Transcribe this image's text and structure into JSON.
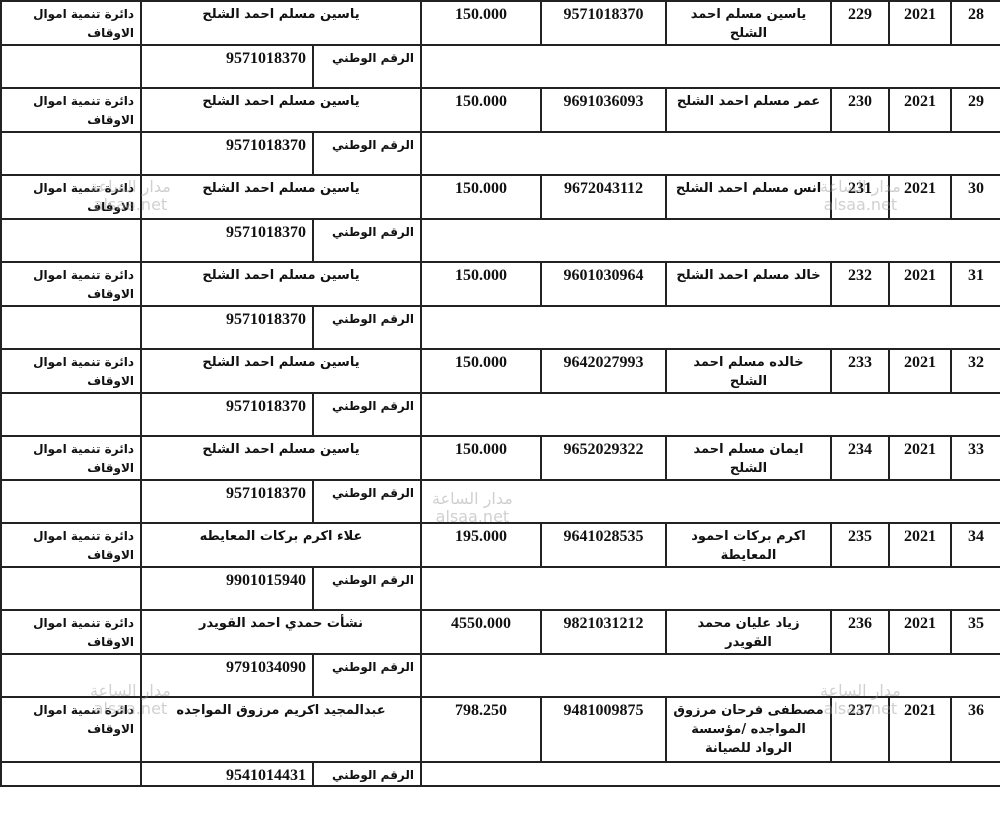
{
  "national_id_label": "الرقم الوطني",
  "watermark": {
    "ar": "مدار الساعة",
    "en": "alsaa.net"
  },
  "records": [
    {
      "seq": "28",
      "year": "2021",
      "number": "229",
      "name": "ياسين مسلم احمد الشلح",
      "national_id": "9571018370",
      "amount": "150.000",
      "beneficiary": "ياسين مسلم احمد الشلح",
      "beneficiary_id": "9571018370",
      "department": "دائرة تنمية اموال الاوقاف"
    },
    {
      "seq": "29",
      "year": "2021",
      "number": "230",
      "name": "عمر مسلم احمد الشلح",
      "national_id": "9691036093",
      "amount": "150.000",
      "beneficiary": "ياسين مسلم احمد الشلح",
      "beneficiary_id": "9571018370",
      "department": "دائرة تنمية اموال الاوقاف"
    },
    {
      "seq": "30",
      "year": "2021",
      "number": "231",
      "name": "انس مسلم احمد الشلح",
      "national_id": "9672043112",
      "amount": "150.000",
      "beneficiary": "ياسين مسلم احمد الشلح",
      "beneficiary_id": "9571018370",
      "department": "دائرة تنمية اموال الاوقاف"
    },
    {
      "seq": "31",
      "year": "2021",
      "number": "232",
      "name": "خالد مسلم احمد الشلح",
      "national_id": "9601030964",
      "amount": "150.000",
      "beneficiary": "ياسين مسلم احمد الشلح",
      "beneficiary_id": "9571018370",
      "department": "دائرة تنمية اموال الاوقاف"
    },
    {
      "seq": "32",
      "year": "2021",
      "number": "233",
      "name": "خالده مسلم احمد الشلح",
      "national_id": "9642027993",
      "amount": "150.000",
      "beneficiary": "ياسين مسلم احمد الشلح",
      "beneficiary_id": "9571018370",
      "department": "دائرة تنمية اموال الاوقاف"
    },
    {
      "seq": "33",
      "year": "2021",
      "number": "234",
      "name": "ايمان مسلم احمد الشلح",
      "national_id": "9652029322",
      "amount": "150.000",
      "beneficiary": "ياسين مسلم احمد الشلح",
      "beneficiary_id": "9571018370",
      "department": "دائرة تنمية اموال الاوقاف"
    },
    {
      "seq": "34",
      "year": "2021",
      "number": "235",
      "name": "اكرم بركات احمود المعايطة",
      "national_id": "9641028535",
      "amount": "195.000",
      "beneficiary": "علاء اكرم بركات المعايطه",
      "beneficiary_id": "9901015940",
      "department": "دائرة تنمية اموال الاوقاف"
    },
    {
      "seq": "35",
      "year": "2021",
      "number": "236",
      "name": "زياد عليان محمد القويدر",
      "national_id": "9821031212",
      "amount": "4550.000",
      "beneficiary": "نشأت حمدي احمد القويدر",
      "beneficiary_id": "9791034090",
      "department": "دائرة تنمية اموال الاوقاف"
    },
    {
      "seq": "36",
      "year": "2021",
      "number": "237",
      "name": "مصطفى فرحان مرزوق المواجده /مؤسسة الرواد للصيانة",
      "national_id": "9481009875",
      "amount": "798.250",
      "beneficiary": "عبدالمجيد اكريم مرزوق المواجده",
      "beneficiary_id": "9541014431",
      "department": "دائرة تنمية اموال الاوقاف"
    }
  ]
}
